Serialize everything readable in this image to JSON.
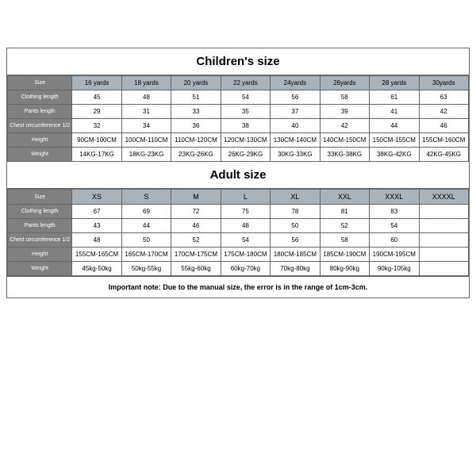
{
  "children": {
    "title": "Children's size",
    "row_labels": [
      "Size",
      "Clothing length",
      "Pants length",
      "Chest circumference 1/2",
      "Height",
      "Weight"
    ],
    "columns": [
      "16 yards",
      "18 yards",
      "20 yards",
      "22 yards",
      "24yards",
      "26yards",
      "28 yards",
      "30yards"
    ],
    "rows": [
      [
        "45",
        "48",
        "51",
        "54",
        "56",
        "58",
        "61",
        "63"
      ],
      [
        "29",
        "31",
        "33",
        "35",
        "37",
        "39",
        "41",
        "42"
      ],
      [
        "32",
        "34",
        "36",
        "38",
        "40",
        "42",
        "44",
        "46"
      ],
      [
        "90CM-100CM",
        "100CM-110CM",
        "110CM-120CM",
        "120CM-130CM",
        "130CM-140CM",
        "140CM-150CM",
        "150CM-155CM",
        "155CM-160CM"
      ],
      [
        "14KG-17KG",
        "18KG-23KG",
        "23KG-26KG",
        "26KG-29KG",
        "30KG-33KG",
        "33KG-38KG",
        "38KG-42KG",
        "42KG-45KG"
      ]
    ]
  },
  "adult": {
    "title": "Adult size",
    "row_labels": [
      "Size",
      "Clothing length",
      "Pants length",
      "Chest circumference 1/2",
      "Height",
      "Weight"
    ],
    "columns": [
      "XS",
      "S",
      "M",
      "L",
      "XL",
      "XXL",
      "XXXL",
      "XXXXL"
    ],
    "rows": [
      [
        "67",
        "69",
        "72",
        "75",
        "78",
        "81",
        "83",
        ""
      ],
      [
        "43",
        "44",
        "46",
        "48",
        "50",
        "52",
        "54",
        ""
      ],
      [
        "48",
        "50",
        "52",
        "54",
        "56",
        "58",
        "60",
        ""
      ],
      [
        "155CM-165CM",
        "165CM-170CM",
        "170CM-175CM",
        "175CM-180CM",
        "180CM-185CM",
        "185CM-190CM",
        "190CM-195CM",
        ""
      ],
      [
        "45kg-50kg",
        "50kg-55kg",
        "55kg-60kg",
        "60kg-70kg",
        "70kg-80kg",
        "80kg-90kg",
        "90kg-105kg",
        ""
      ]
    ]
  },
  "note": "Important note: Due to the manual size, the error is in the range of 1cm-3cm.",
  "colors": {
    "header_bg": "#aab2ba",
    "label_bg": "#808080",
    "label_text": "#ffffff",
    "border": "#666666",
    "background": "#ffffff"
  },
  "typography": {
    "title_fontsize": 15,
    "cell_fontsize": 8,
    "label_fontsize": 7,
    "note_fontsize": 9
  }
}
